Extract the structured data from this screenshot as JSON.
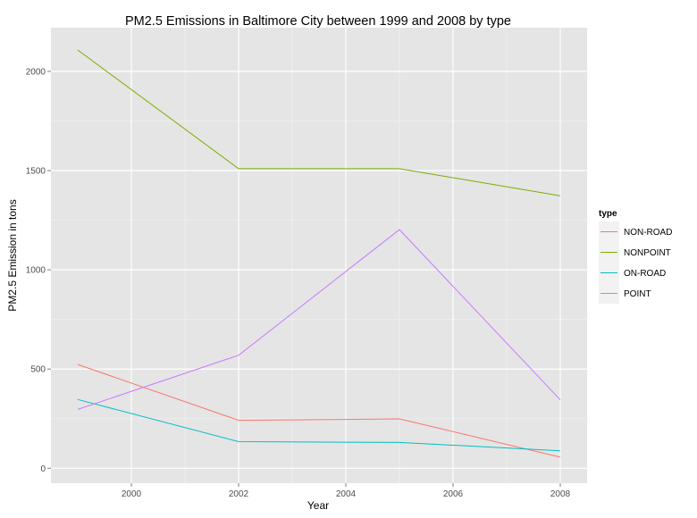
{
  "chart_data": {
    "type": "line",
    "title": "PM2.5 Emissions in Baltimore City between 1999 and 2008 by type",
    "xlabel": "Year",
    "ylabel": "PM2.5 Emission in tons",
    "x": [
      1999,
      2002,
      2005,
      2008
    ],
    "xlim": [
      1998.5,
      2008.5
    ],
    "ylim": [
      -75,
      2220
    ],
    "xticks": [
      2000,
      2002,
      2004,
      2006,
      2008
    ],
    "yticks": [
      0,
      500,
      1000,
      1500,
      2000
    ],
    "grid": true,
    "legend_title": "type",
    "legend_position": "right",
    "series": [
      {
        "name": "NON-ROAD",
        "color": "#F8766D",
        "values": [
          522.9,
          242.0,
          248.9,
          55.8
        ]
      },
      {
        "name": "NONPOINT",
        "color": "#7CAE00",
        "values": [
          2107.6,
          1509.5,
          1509.5,
          1373.2
        ]
      },
      {
        "name": "ON-ROAD",
        "color": "#00BFC4",
        "values": [
          346.8,
          134.3,
          130.4,
          88.3
        ]
      },
      {
        "name": "POINT",
        "color": "#C77CFF",
        "values": [
          296.8,
          569.3,
          1202.5,
          344.98
        ]
      }
    ]
  }
}
